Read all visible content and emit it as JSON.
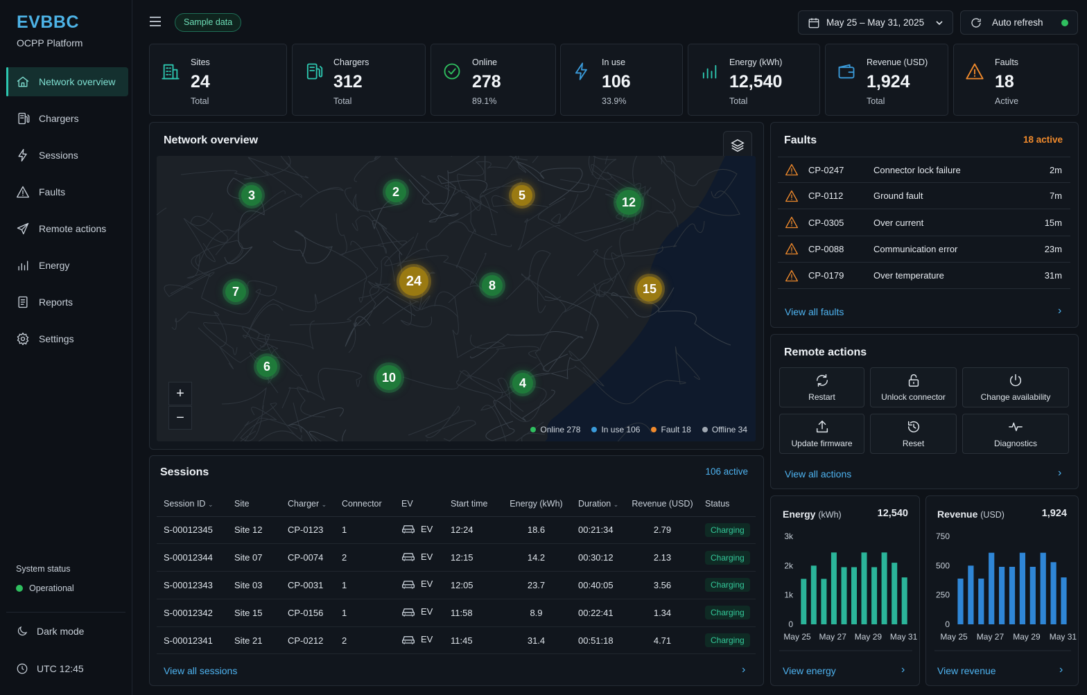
{
  "app": {
    "name": "EVBBC",
    "subtitle": "OCPP Platform"
  },
  "nav": [
    {
      "label": "Network overview",
      "icon": "home-icon",
      "active": true
    },
    {
      "label": "Chargers",
      "icon": "charger-icon"
    },
    {
      "label": "Sessions",
      "icon": "bolt-icon"
    },
    {
      "label": "Faults",
      "icon": "warning-icon"
    },
    {
      "label": "Remote actions",
      "icon": "send-icon"
    },
    {
      "label": "Energy",
      "icon": "bar-chart-icon"
    },
    {
      "label": "Reports",
      "icon": "report-icon"
    },
    {
      "label": "Settings",
      "icon": "gear-icon"
    }
  ],
  "system": {
    "label": "System status",
    "status": "Operational",
    "status_color": "#2fbf5f"
  },
  "footer": {
    "dark_mode": "Dark mode",
    "time": "UTC 12:45"
  },
  "topbar": {
    "sample_badge": "Sample data",
    "date_range": "May 25 – May 31, 2025",
    "auto_refresh": "Auto refresh",
    "auto_refresh_color": "#2fbf5f"
  },
  "kpis": [
    {
      "label": "Sites",
      "value": "24",
      "sub": "Total",
      "icon": "building-icon",
      "color": "#2dc7b0"
    },
    {
      "label": "Chargers",
      "value": "312",
      "sub": "Total",
      "icon": "charger-icon",
      "color": "#2dc7b0"
    },
    {
      "label": "Online",
      "value": "278",
      "sub": "89.1%",
      "icon": "check-circle-icon",
      "color": "#2fbf5f"
    },
    {
      "label": "In use",
      "value": "106",
      "sub": "33.9%",
      "icon": "bolt-icon",
      "color": "#3a9ad9"
    },
    {
      "label": "Energy (kWh)",
      "value": "12,540",
      "sub": "Total",
      "icon": "bar-chart-icon",
      "color": "#2dc7b0"
    },
    {
      "label": "Revenue (USD)",
      "value": "1,924",
      "sub": "Total",
      "icon": "wallet-icon",
      "color": "#3a9ad9"
    },
    {
      "label": "Faults",
      "value": "18",
      "sub": "Active",
      "icon": "warning-icon",
      "color": "#f08a2c"
    }
  ],
  "map": {
    "title": "Network overview",
    "clusters": [
      {
        "count": "3",
        "status": "online"
      },
      {
        "count": "2",
        "status": "online"
      },
      {
        "count": "5",
        "status": "fault"
      },
      {
        "count": "12",
        "status": "online"
      },
      {
        "count": "7",
        "status": "online"
      },
      {
        "count": "24",
        "status": "fault"
      },
      {
        "count": "8",
        "status": "online"
      },
      {
        "count": "15",
        "status": "fault"
      },
      {
        "count": "6",
        "status": "online"
      },
      {
        "count": "10",
        "status": "online"
      },
      {
        "count": "4",
        "status": "online"
      }
    ],
    "legend": [
      {
        "label": "Online 278",
        "color": "#2fbf5f"
      },
      {
        "label": "In use 106",
        "color": "#3a9ad9"
      },
      {
        "label": "Fault 18",
        "color": "#f08a2c"
      },
      {
        "label": "Offline 34",
        "color": "#a0a8b2"
      }
    ],
    "zoom_in": "+",
    "zoom_out": "−"
  },
  "faults": {
    "title": "Faults",
    "count_label": "18 active",
    "items": [
      {
        "id": "CP-0247",
        "desc": "Connector lock failure",
        "age": "2m"
      },
      {
        "id": "CP-0112",
        "desc": "Ground fault",
        "age": "7m"
      },
      {
        "id": "CP-0305",
        "desc": "Over current",
        "age": "15m"
      },
      {
        "id": "CP-0088",
        "desc": "Communication error",
        "age": "23m"
      },
      {
        "id": "CP-0179",
        "desc": "Over temperature",
        "age": "31m"
      }
    ],
    "view_all": "View all faults"
  },
  "remote": {
    "title": "Remote actions",
    "actions": [
      {
        "label": "Restart",
        "icon": "restart-icon"
      },
      {
        "label": "Unlock connector",
        "icon": "unlock-icon"
      },
      {
        "label": "Change availability",
        "icon": "power-icon"
      },
      {
        "label": "Update firmware",
        "icon": "upload-icon"
      },
      {
        "label": "Reset",
        "icon": "reset-icon"
      },
      {
        "label": "Diagnostics",
        "icon": "pulse-icon"
      }
    ],
    "view_all": "View all actions"
  },
  "sessions": {
    "title": "Sessions",
    "count_label": "106 active",
    "columns": [
      "Session ID",
      "Site",
      "Charger",
      "Connector",
      "EV",
      "Start time",
      "Energy (kWh)",
      "Duration",
      "Revenue (USD)",
      "Status"
    ],
    "rows": [
      {
        "id": "S-00012345",
        "site": "Site 12",
        "charger": "CP-0123",
        "connector": "1",
        "ev": "EV",
        "start": "12:24",
        "energy": "18.6",
        "duration": "00:21:34",
        "revenue": "2.79",
        "status": "Charging"
      },
      {
        "id": "S-00012344",
        "site": "Site 07",
        "charger": "CP-0074",
        "connector": "2",
        "ev": "EV",
        "start": "12:15",
        "energy": "14.2",
        "duration": "00:30:12",
        "revenue": "2.13",
        "status": "Charging"
      },
      {
        "id": "S-00012343",
        "site": "Site 03",
        "charger": "CP-0031",
        "connector": "1",
        "ev": "EV",
        "start": "12:05",
        "energy": "23.7",
        "duration": "00:40:05",
        "revenue": "3.56",
        "status": "Charging"
      },
      {
        "id": "S-00012342",
        "site": "Site 15",
        "charger": "CP-0156",
        "connector": "1",
        "ev": "EV",
        "start": "11:58",
        "energy": "8.9",
        "duration": "00:22:41",
        "revenue": "1.34",
        "status": "Charging"
      },
      {
        "id": "S-00012341",
        "site": "Site 21",
        "charger": "CP-0212",
        "connector": "2",
        "ev": "EV",
        "start": "11:45",
        "energy": "31.4",
        "duration": "00:51:18",
        "revenue": "4.71",
        "status": "Charging"
      }
    ],
    "view_all": "View all sessions"
  },
  "energy_card": {
    "title": "Energy",
    "unit": "(kWh)",
    "value": "12,540",
    "view_all": "View energy"
  },
  "revenue_card": {
    "title": "Revenue",
    "unit": "(USD)",
    "value": "1,924",
    "view_all": "View revenue"
  },
  "chart_data": [
    {
      "type": "bar",
      "title": "Energy (kWh)",
      "color": "#2bb59a",
      "ylim": [
        0,
        3000
      ],
      "yticks": [
        "0",
        "1k",
        "2k",
        "3k"
      ],
      "xticks": [
        "May 25",
        "May 27",
        "May 29",
        "May 31"
      ],
      "values": [
        1550,
        2000,
        1550,
        2450,
        1950,
        1950,
        2450,
        1950,
        2450,
        2100,
        1600
      ]
    },
    {
      "type": "bar",
      "title": "Revenue (USD)",
      "color": "#2f86d6",
      "ylim": [
        0,
        750
      ],
      "yticks": [
        "0",
        "250",
        "500",
        "750"
      ],
      "xticks": [
        "May 25",
        "May 27",
        "May 29",
        "May 31"
      ],
      "values": [
        390,
        500,
        390,
        610,
        490,
        490,
        610,
        490,
        610,
        530,
        400
      ]
    }
  ]
}
